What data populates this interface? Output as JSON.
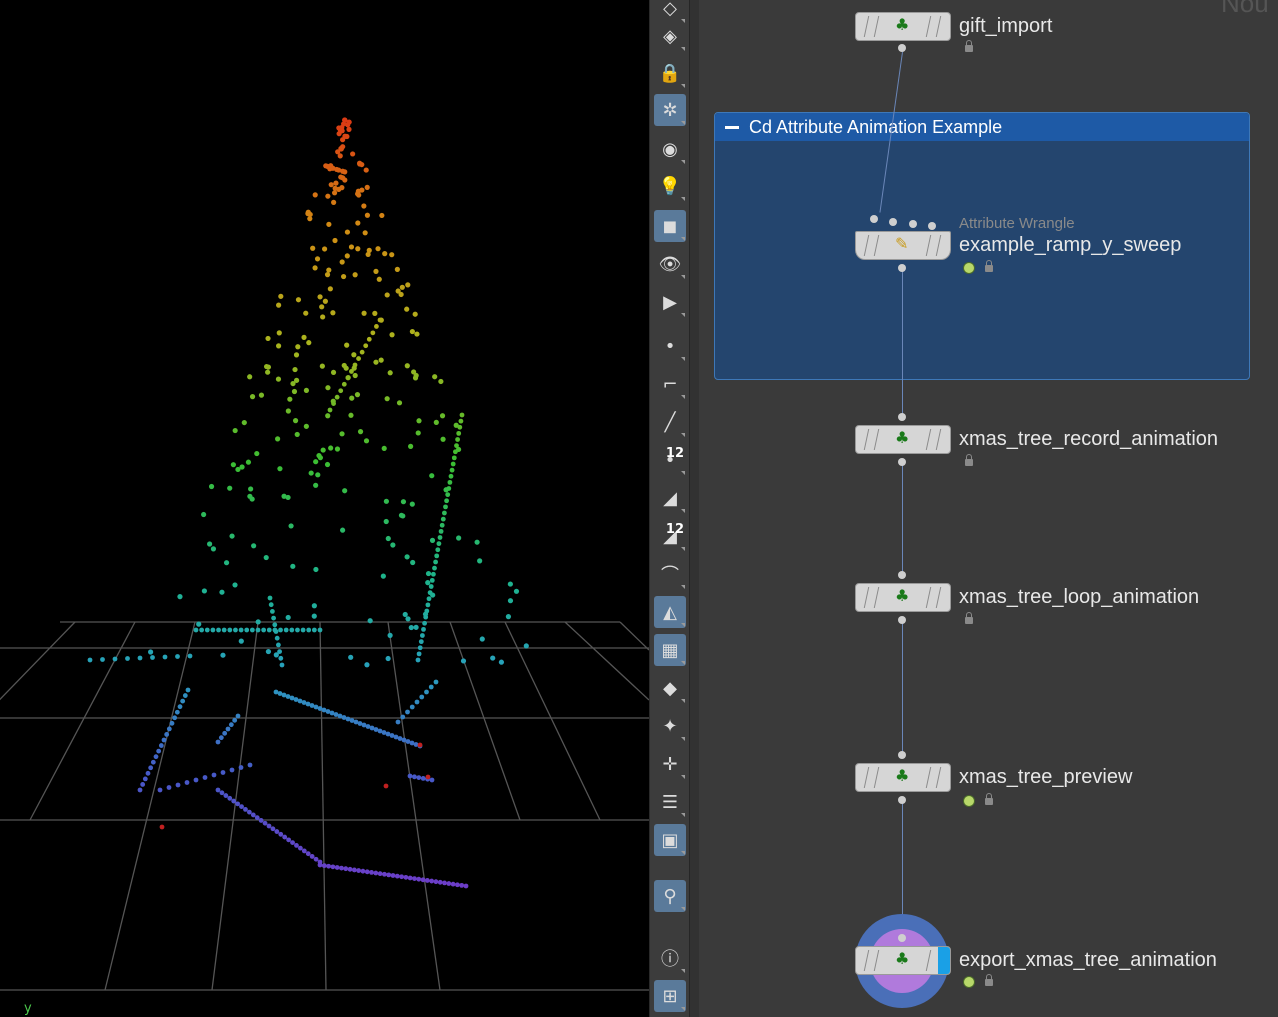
{
  "viewport": {
    "axis_label": "y",
    "colors": {
      "background": "#000000",
      "grid": "#555555"
    }
  },
  "toolbar": {
    "items": [
      {
        "name": "layers-icon"
      },
      {
        "name": "display-options-icon"
      },
      {
        "name": "lock-icon"
      },
      {
        "name": "ghost-icon",
        "active": true
      },
      {
        "name": "speed-icon"
      },
      {
        "name": "light-bulb-icon"
      },
      {
        "name": "shading-icon",
        "active": true
      },
      {
        "name": "eye-icon"
      },
      {
        "name": "eye-play-icon"
      },
      {
        "name": "point-icon"
      },
      {
        "name": "brush-icon"
      },
      {
        "name": "pin-icon"
      },
      {
        "name": "point-number-icon",
        "text": "12"
      },
      {
        "name": "primitive-icon"
      },
      {
        "name": "primitive-number-icon",
        "text": "12"
      },
      {
        "name": "curve-icon"
      },
      {
        "name": "plane-icon",
        "active": true
      },
      {
        "name": "uv-checker-icon",
        "active": true
      },
      {
        "name": "bounding-box-icon"
      },
      {
        "name": "transform-icon"
      },
      {
        "name": "vector-icon"
      },
      {
        "name": "list-icon"
      },
      {
        "name": "background-image-icon",
        "active": true
      },
      {
        "name": "location-icon",
        "active": true
      },
      {
        "name": "info-icon"
      },
      {
        "name": "grid-icon",
        "active": true
      }
    ]
  },
  "network": {
    "netbox": {
      "title": "Cd Attribute Animation Example"
    },
    "nodes": [
      {
        "id": "gift_import",
        "label": "gift_import"
      },
      {
        "id": "example_ramp_y_sweep",
        "label": "example_ramp_y_sweep",
        "type": "Attribute Wrangle"
      },
      {
        "id": "xmas_tree_record_animation",
        "label": "xmas_tree_record_animation"
      },
      {
        "id": "xmas_tree_loop_animation",
        "label": "xmas_tree_loop_animation"
      },
      {
        "id": "xmas_tree_preview",
        "label": "xmas_tree_preview"
      },
      {
        "id": "export_xmas_tree_animation",
        "label": "export_xmas_tree_animation"
      }
    ],
    "corner_text": "Nou"
  }
}
